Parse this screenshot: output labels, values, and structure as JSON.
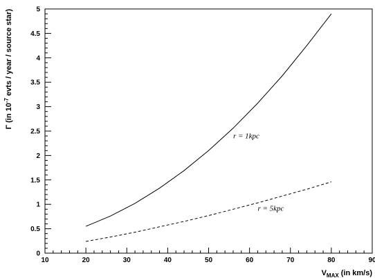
{
  "chart_data": {
    "type": "line",
    "xlim": [
      10,
      90
    ],
    "ylim": [
      0,
      5
    ],
    "xticks": [
      10,
      20,
      30,
      40,
      50,
      60,
      70,
      80,
      90
    ],
    "yticks": [
      0,
      0.5,
      1,
      1.5,
      2,
      2.5,
      3,
      3.5,
      4,
      4.5,
      5
    ],
    "xlabel": {
      "main": "V",
      "sub": "MAX",
      "rest": " (in km/s)"
    },
    "ylabel": {
      "pre": "Γ (in 10",
      "sup": "-7",
      "post": " evts / year / source star)"
    },
    "series": [
      {
        "label": "r = 1kpc",
        "style": "solid",
        "x": [
          20,
          26,
          32,
          38,
          44,
          50,
          56,
          62,
          68,
          74,
          80
        ],
        "y": [
          0.55,
          0.76,
          1.02,
          1.33,
          1.69,
          2.1,
          2.56,
          3.07,
          3.63,
          4.25,
          4.9
        ]
      },
      {
        "label": "r = 5kpc",
        "style": "dashed",
        "x": [
          20,
          26,
          32,
          38,
          44,
          50,
          56,
          62,
          68,
          74,
          80
        ],
        "y": [
          0.24,
          0.33,
          0.43,
          0.54,
          0.65,
          0.77,
          0.9,
          1.03,
          1.17,
          1.31,
          1.46
        ]
      }
    ],
    "annotations": [
      {
        "text": "r = 1kpc",
        "x": 56,
        "y": 2.35
      },
      {
        "text": "r = 5kpc",
        "x": 62,
        "y": 0.87
      }
    ]
  }
}
